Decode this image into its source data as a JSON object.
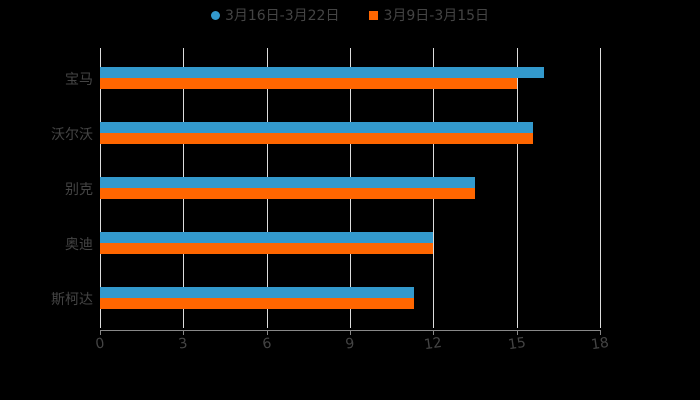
{
  "legend": [
    {
      "label": "3月16日-3月22日",
      "color": "#3399cc"
    },
    {
      "label": "3月9日-3月15日",
      "color": "#ff6600"
    }
  ],
  "axis": {
    "ticks": [
      "0",
      "3",
      "6",
      "9",
      "12",
      "15",
      "18"
    ]
  },
  "chart_data": {
    "type": "bar",
    "orientation": "horizontal",
    "title": "",
    "categories": [
      "宝马",
      "沃尔沃",
      "别克",
      "奥迪",
      "斯柯达"
    ],
    "series": [
      {
        "name": "3月16日-3月22日",
        "color": "#3399cc",
        "values": [
          16.0,
          15.6,
          13.5,
          12.0,
          11.3
        ]
      },
      {
        "name": "3月9日-3月15日",
        "color": "#ff6600",
        "values": [
          15.0,
          15.6,
          13.5,
          12.0,
          11.3
        ]
      }
    ],
    "xlabel": "",
    "ylabel": "",
    "xlim": [
      0,
      18
    ],
    "xticks": [
      0,
      3,
      6,
      9,
      12,
      15,
      18
    ],
    "grid": true,
    "legend_position": "top"
  }
}
